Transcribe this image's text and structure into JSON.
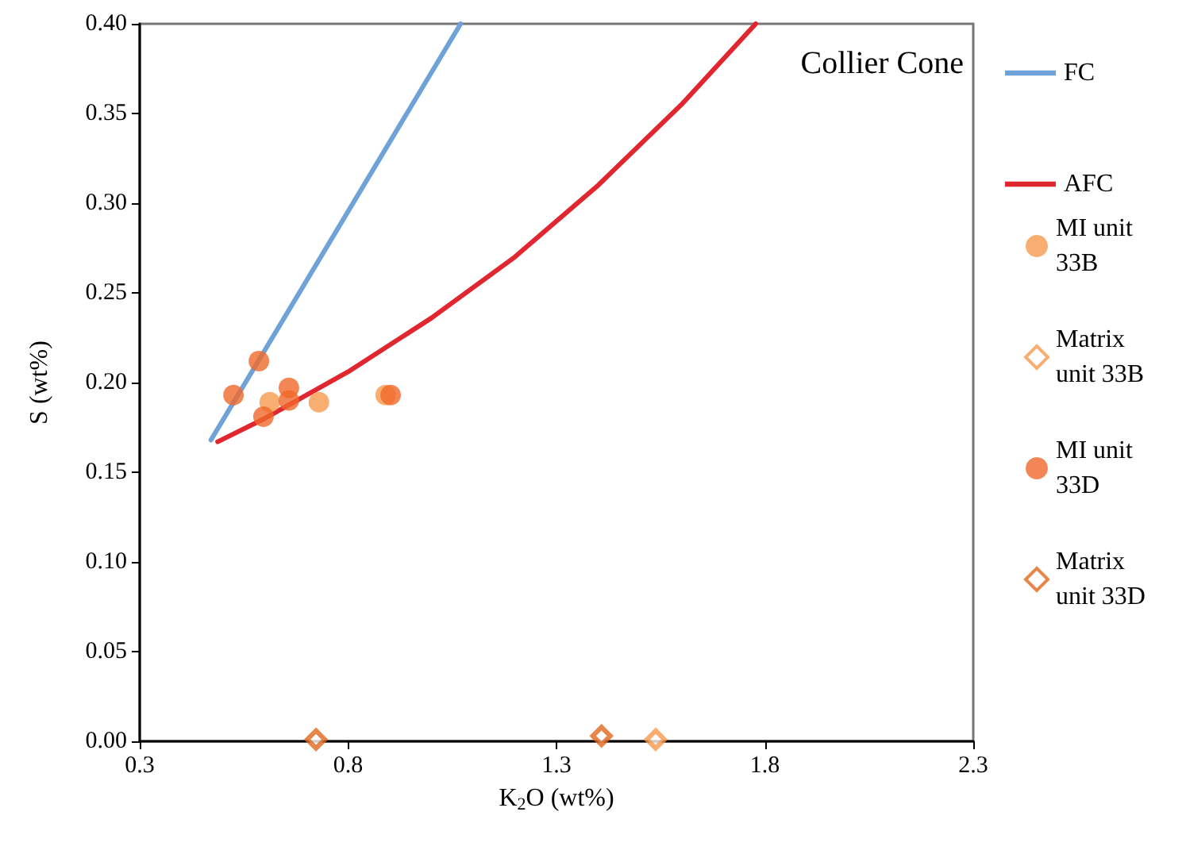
{
  "chart_data": {
    "type": "scatter",
    "xlabel": "K$_{2}$O (wt%)",
    "ylabel": "S (wt%)",
    "annotations": [
      "Collier Cone"
    ],
    "xlim": [
      0.3,
      2.3
    ],
    "xticks": [
      0.3,
      0.8,
      1.3,
      1.8,
      2.3
    ],
    "ylim": [
      0,
      0.4
    ],
    "yticks": [
      {
        "value": 0,
        "label": "0.00"
      },
      {
        "value": 0.05,
        "label": "0.05"
      },
      {
        "value": 0.1,
        "label": "0.10"
      },
      {
        "value": 0.15,
        "label": "0.15"
      },
      {
        "value": 0.2,
        "label": "0.20"
      },
      {
        "value": 0.25,
        "label": "0.25"
      },
      {
        "value": 0.3,
        "label": "0.30"
      },
      {
        "value": 0.35,
        "label": "0.35"
      },
      {
        "value": 0.4,
        "label": "0.40"
      }
    ],
    "grid": false,
    "legend": "right",
    "series": [
      {
        "name": "FC",
        "type": "line",
        "marker": "none",
        "color": "#6fa3d8",
        "x": [
          0.471,
          1.07
        ],
        "values": [
          0.168,
          0.4
        ]
      },
      {
        "name": "AFC",
        "type": "line",
        "marker": "none",
        "color": "#e0262e",
        "x": [
          0.487,
          0.6,
          0.8,
          1.0,
          1.2,
          1.4,
          1.6,
          1.778
        ],
        "values": [
          0.167,
          0.18,
          0.206,
          0.236,
          0.27,
          0.31,
          0.355,
          0.4
        ]
      },
      {
        "name": "MI unit 33B",
        "marker": "circle",
        "color": "#f79a4d",
        "x": [
          0.612,
          0.73,
          0.89
        ],
        "values": [
          0.189,
          0.189,
          0.193
        ]
      },
      {
        "name": "Matrix unit 33B",
        "marker": "diamond",
        "color": "#f79a4d",
        "x": [
          1.538
        ],
        "values": [
          0.001
        ]
      },
      {
        "name": "MI unit 33D",
        "marker": "circle",
        "color": "#f0682a",
        "x": [
          0.525,
          0.586,
          0.597,
          0.658,
          0.658,
          0.902
        ],
        "values": [
          0.193,
          0.212,
          0.181,
          0.197,
          0.19,
          0.193
        ]
      },
      {
        "name": "Matrix unit 33D",
        "marker": "diamond",
        "color": "#e0681e",
        "x": [
          0.723,
          1.408
        ],
        "values": [
          0.001,
          0.003
        ]
      }
    ]
  }
}
